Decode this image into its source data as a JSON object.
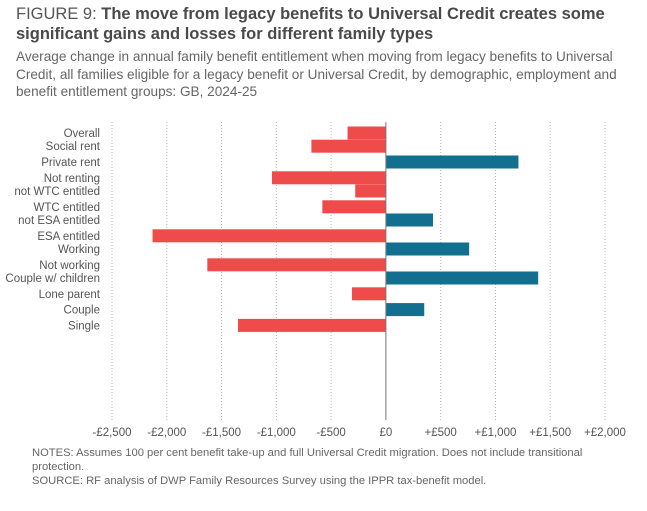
{
  "header": {
    "figure_label": "FIGURE 9: ",
    "title": "The move from legacy benefits to Universal Credit creates some significant gains and losses for different family types",
    "subtitle": "Average change in annual family benefit entitlement when moving from legacy benefits to Universal Credit, all families eligible for a legacy benefit or Universal Credit, by demographic, employment and benefit entitlement groups: GB, 2024-25"
  },
  "chart_data": {
    "type": "bar",
    "orientation": "horizontal",
    "categories": [
      "Overall",
      "Social rent",
      "Private rent",
      "Not renting",
      "not WTC entitled",
      "WTC entitled",
      "not ESA entitled",
      "ESA entitled",
      "Working",
      "Not working",
      "Couple w/ children",
      "Lone parent",
      "Couple",
      "Single"
    ],
    "groups": [
      [
        0
      ],
      [
        1,
        2,
        3
      ],
      [
        4,
        5
      ],
      [
        6,
        7
      ],
      [
        8,
        9
      ],
      [
        10,
        11,
        12,
        13
      ]
    ],
    "values": [
      -350,
      -680,
      1210,
      -1040,
      -280,
      -580,
      430,
      -2130,
      760,
      -1630,
      1390,
      -310,
      350,
      -1350
    ],
    "xlim": [
      -2500,
      2000
    ],
    "xticks": [
      -2500,
      -2000,
      -1500,
      -1000,
      -500,
      0,
      500,
      1000,
      1500,
      2000
    ],
    "xtick_labels": [
      "-£2,500",
      "-£2,000",
      "-£1,500",
      "-£1,000",
      "-£500",
      "£0",
      "+£500",
      "+£1,000",
      "+£1,500",
      "+£2,000"
    ],
    "colors": {
      "positive": "#136f8f",
      "negative": "#ef4b4b"
    },
    "grid": true
  },
  "footer": {
    "notes": "NOTES: Assumes 100 per cent benefit take-up and full Universal Credit migration. Does not include transitional protection.",
    "source": "SOURCE: RF analysis of DWP Family Resources Survey using the IPPR tax-benefit model."
  }
}
